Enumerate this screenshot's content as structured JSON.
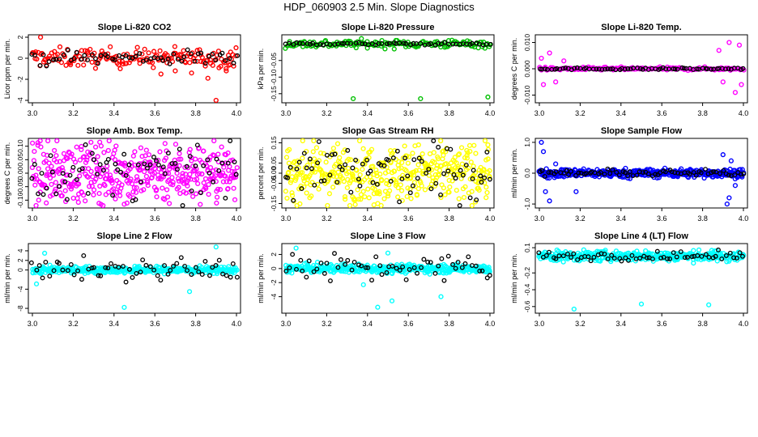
{
  "page": {
    "title": "HDP_060903  2.5 Min. Slope Diagnostics"
  },
  "chart_data": [
    {
      "id": "co2",
      "type": "scatter",
      "title": "Slope Li-820 CO2",
      "xlabel": "",
      "ylabel": "Licor ppm per min.",
      "xlim": [
        3.0,
        4.0
      ],
      "ylim": [
        -4,
        2
      ],
      "yticks": [
        "-4",
        "-2",
        "0",
        "2"
      ],
      "ytick_values": [
        -4,
        -2,
        0,
        2
      ],
      "xticks": [
        "3.0",
        "3.2",
        "3.4",
        "3.6",
        "3.8",
        "4.0"
      ],
      "color": "#ff0000",
      "center": 0.05,
      "spread": 0.45,
      "black_spread": 0.35,
      "n": 170,
      "nblack": 60,
      "outliers": [
        [
          3.04,
          2.0
        ],
        [
          3.63,
          -1.5
        ],
        [
          3.7,
          -1.2
        ],
        [
          3.78,
          -1.4
        ],
        [
          3.86,
          -1.9
        ],
        [
          3.9,
          -4.0
        ],
        [
          3.95,
          -1.2
        ],
        [
          3.97,
          -0.6
        ]
      ]
    },
    {
      "id": "pressure",
      "type": "scatter",
      "title": "Slope Li-820 Pressure",
      "xlabel": "",
      "ylabel": "kPa per min.",
      "xlim": [
        3.0,
        4.0
      ],
      "ylim": [
        -0.17,
        0.02
      ],
      "yticks": [
        "-0.05",
        "-0.10",
        "-0.15"
      ],
      "ytick_values": [
        -0.05,
        -0.1,
        -0.15
      ],
      "xticks": [
        "3.0",
        "3.2",
        "3.4",
        "3.6",
        "3.8",
        "4.0"
      ],
      "color": "#00c000",
      "center": 0.0,
      "spread": 0.006,
      "black_spread": 0.002,
      "n": 160,
      "nblack": 60,
      "outliers": [
        [
          3.33,
          -0.165
        ],
        [
          3.66,
          -0.165
        ],
        [
          3.99,
          -0.16
        ]
      ]
    },
    {
      "id": "temp",
      "type": "scatter",
      "title": "Slope Li-820 Temp.",
      "xlabel": "",
      "ylabel": "degrees C per min.",
      "xlim": [
        3.0,
        4.0
      ],
      "ylim": [
        -0.012,
        0.012
      ],
      "yticks": [
        "-0.010",
        "0.000",
        "0.010"
      ],
      "ytick_values": [
        -0.01,
        0.0,
        0.01
      ],
      "xticks": [
        "3.0",
        "3.2",
        "3.4",
        "3.6",
        "3.8",
        "4.0"
      ],
      "color": "#ff00ff",
      "center": 0.0,
      "spread": 0.0003,
      "black_spread": 0.0002,
      "n": 160,
      "nblack": 70,
      "outliers": [
        [
          3.01,
          0.004
        ],
        [
          3.02,
          -0.006
        ],
        [
          3.05,
          0.006
        ],
        [
          3.08,
          -0.005
        ],
        [
          3.12,
          0.003
        ],
        [
          3.88,
          0.007
        ],
        [
          3.9,
          -0.005
        ],
        [
          3.93,
          0.01
        ],
        [
          3.96,
          -0.009
        ],
        [
          3.98,
          0.009
        ],
        [
          3.99,
          -0.006
        ]
      ]
    },
    {
      "id": "boxtemp",
      "type": "scatter",
      "title": "Slope Amb. Box Temp.",
      "xlabel": "",
      "ylabel": "degrees C per min.",
      "xlim": [
        3.0,
        4.0
      ],
      "ylim": [
        -0.12,
        0.12
      ],
      "yticks": [
        "-0.10",
        "-0.05",
        "0.00",
        "0.05",
        "0.10"
      ],
      "ytick_values": [
        -0.1,
        -0.05,
        0.0,
        0.05,
        0.1
      ],
      "xticks": [
        "3.0",
        "3.2",
        "3.4",
        "3.6",
        "3.8",
        "4.0"
      ],
      "color": "#ff00ff",
      "center": 0.0,
      "spread": 0.055,
      "black_spread": 0.05,
      "n": 420,
      "nblack": 70,
      "outliers": [
        [
          3.33,
          0.115
        ],
        [
          3.65,
          0.11
        ],
        [
          3.45,
          -0.115
        ]
      ]
    },
    {
      "id": "rh",
      "type": "scatter",
      "title": "Slope Gas Stream RH",
      "xlabel": "",
      "ylabel": "percent per min.",
      "xlim": [
        3.0,
        4.0
      ],
      "ylim": [
        -0.16,
        0.16
      ],
      "yticks": [
        "-0.15",
        "-0.05",
        "0.00",
        "0.05",
        "0.15"
      ],
      "ytick_values": [
        -0.15,
        -0.05,
        0.0,
        0.05,
        0.15
      ],
      "xticks": [
        "3.0",
        "3.2",
        "3.4",
        "3.6",
        "3.8",
        "4.0"
      ],
      "color": "#ffff00",
      "center": 0.0,
      "spread": 0.07,
      "black_spread": 0.07,
      "n": 420,
      "nblack": 80,
      "outliers": [
        [
          3.45,
          -0.15
        ],
        [
          3.99,
          0.14
        ],
        [
          3.76,
          -0.12
        ]
      ]
    },
    {
      "id": "sampleflow",
      "type": "scatter",
      "title": "Slope Sample Flow",
      "xlabel": "",
      "ylabel": "ml/min per min.",
      "xlim": [
        3.0,
        4.0
      ],
      "ylim": [
        -1.05,
        1.05
      ],
      "yticks": [
        "-1.0",
        "0.0",
        "1.0"
      ],
      "ytick_values": [
        -1.0,
        0.0,
        1.0
      ],
      "xticks": [
        "3.0",
        "3.2",
        "3.4",
        "3.6",
        "3.8",
        "4.0"
      ],
      "color": "#0000ff",
      "center": 0.0,
      "spread": 0.07,
      "black_spread": 0.05,
      "n": 380,
      "nblack": 70,
      "outliers": [
        [
          3.01,
          1.0
        ],
        [
          3.02,
          0.7
        ],
        [
          3.03,
          -0.6
        ],
        [
          3.05,
          -0.9
        ],
        [
          3.08,
          0.3
        ],
        [
          3.18,
          -0.6
        ],
        [
          3.9,
          0.6
        ],
        [
          3.92,
          -1.0
        ],
        [
          3.94,
          0.4
        ],
        [
          3.96,
          -0.4
        ],
        [
          3.93,
          -0.8
        ]
      ]
    },
    {
      "id": "line2",
      "type": "scatter",
      "title": "Slope Line 2 Flow",
      "xlabel": "",
      "ylabel": "ml/min per min.",
      "xlim": [
        3.0,
        4.0
      ],
      "ylim": [
        -8.5,
        5.0
      ],
      "yticks": [
        "-8",
        "-4",
        "0",
        "2",
        "4"
      ],
      "ytick_values": [
        -8,
        -4,
        0,
        2,
        4
      ],
      "xticks": [
        "3.0",
        "3.2",
        "3.4",
        "3.6",
        "3.8",
        "4.0"
      ],
      "color": "#00ffff",
      "center": 0.0,
      "spread": 0.35,
      "black_spread": 1.2,
      "n": 380,
      "nblack": 60,
      "outliers": [
        [
          3.9,
          4.8
        ],
        [
          3.45,
          -7.8
        ],
        [
          3.02,
          -2.9
        ],
        [
          3.06,
          3.5
        ],
        [
          3.77,
          -4.5
        ]
      ]
    },
    {
      "id": "line3",
      "type": "scatter",
      "title": "Slope Line 3 Flow",
      "xlabel": "",
      "ylabel": "ml/min per min.",
      "xlim": [
        3.0,
        4.0
      ],
      "ylim": [
        -6.0,
        3.2
      ],
      "yticks": [
        "-4",
        "-2",
        "0",
        "2"
      ],
      "ytick_values": [
        -4,
        -2,
        0,
        2
      ],
      "xticks": [
        "3.0",
        "3.2",
        "3.4",
        "3.6",
        "3.8",
        "4.0"
      ],
      "color": "#00ffff",
      "center": 0.0,
      "spread": 0.3,
      "black_spread": 1.0,
      "n": 380,
      "nblack": 60,
      "outliers": [
        [
          3.05,
          2.9
        ],
        [
          3.5,
          2.2
        ],
        [
          3.45,
          -5.5
        ],
        [
          3.52,
          -4.6
        ],
        [
          3.76,
          -4.0
        ],
        [
          3.38,
          -2.3
        ]
      ]
    },
    {
      "id": "line4",
      "type": "scatter",
      "title": "Slope Line 4 (LT) Flow",
      "xlabel": "",
      "ylabel": "ml/min per min.",
      "xlim": [
        3.0,
        4.0
      ],
      "ylim": [
        -0.65,
        0.12
      ],
      "yticks": [
        "-0.6",
        "-0.4",
        "-0.2",
        "0.1"
      ],
      "ytick_values": [
        -0.6,
        -0.4,
        -0.2,
        0.1
      ],
      "xticks": [
        "3.0",
        "3.2",
        "3.4",
        "3.6",
        "3.8",
        "4.0"
      ],
      "color": "#00ffff",
      "center": 0.0,
      "spread": 0.03,
      "black_spread": 0.025,
      "n": 380,
      "nblack": 60,
      "outliers": [
        [
          3.17,
          -0.63
        ],
        [
          3.5,
          -0.57
        ],
        [
          3.83,
          -0.58
        ]
      ]
    }
  ]
}
